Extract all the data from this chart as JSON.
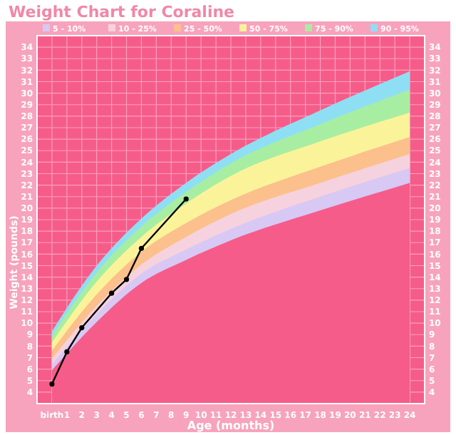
{
  "chart_data": {
    "type": "area",
    "title": "Weight Chart for Coraline",
    "xlabel": "Age (months)",
    "ylabel": "Weight (pounds)",
    "xlim": [
      -1,
      25
    ],
    "xticks": [
      {
        "value": 0,
        "label": "birth"
      },
      1,
      2,
      3,
      4,
      5,
      6,
      7,
      8,
      9,
      10,
      11,
      12,
      13,
      14,
      15,
      16,
      17,
      18,
      19,
      20,
      21,
      22,
      23,
      24
    ],
    "ylim": [
      3,
      35
    ],
    "yticks": [
      4,
      5,
      6,
      7,
      8,
      9,
      10,
      11,
      12,
      13,
      14,
      15,
      16,
      17,
      18,
      19,
      20,
      21,
      22,
      23,
      24,
      25,
      26,
      27,
      28,
      29,
      30,
      31,
      32,
      33,
      34
    ],
    "y2lim": [
      3,
      35
    ],
    "y2ticks": [
      4,
      5,
      6,
      7,
      8,
      9,
      10,
      11,
      12,
      13,
      14,
      15,
      16,
      17,
      18,
      19,
      20,
      21,
      22,
      23,
      24,
      25,
      26,
      27,
      28,
      29,
      30,
      31,
      32,
      33,
      34
    ],
    "grid": true,
    "legend": "top",
    "x": [
      0,
      3,
      6,
      9,
      12,
      18,
      24
    ],
    "series": [
      {
        "name": "90 - 95%",
        "color": "#8fdff4",
        "values": [
          9.3,
          15.0,
          19.1,
          22.2,
          24.7,
          28.5,
          31.9
        ]
      },
      {
        "name": "75 - 90%",
        "color": "#a8eea2",
        "values": [
          8.9,
          14.4,
          18.4,
          21.4,
          23.9,
          27.3,
          30.3
        ]
      },
      {
        "name": "50 - 75%",
        "color": "#fbf39a",
        "values": [
          8.3,
          13.6,
          17.5,
          20.4,
          22.8,
          25.8,
          28.3
        ]
      },
      {
        "name": "25 - 50%",
        "color": "#fbc08c",
        "values": [
          7.6,
          12.5,
          16.2,
          18.7,
          20.7,
          23.6,
          26.2
        ]
      },
      {
        "name": "10 - 25%",
        "color": "#f6d2de",
        "values": [
          6.9,
          11.5,
          15.1,
          17.5,
          19.5,
          22.2,
          24.7
        ]
      },
      {
        "name": "5 - 10%",
        "color": "#d8c8f4",
        "values": [
          6.4,
          10.8,
          14.3,
          16.4,
          18.2,
          21.0,
          23.5
        ]
      },
      {
        "color": "#f65c8a",
        "values": [
          5.9,
          10.1,
          13.5,
          15.5,
          17.2,
          19.8,
          22.2
        ]
      },
      {
        "type": "line",
        "color": "#000000",
        "marker": "circle",
        "line_style": "solid",
        "x": [
          0,
          1,
          2,
          4,
          5,
          6,
          9
        ],
        "values": [
          4.7,
          7.5,
          9.6,
          12.6,
          13.8,
          16.5,
          20.8
        ]
      }
    ]
  }
}
